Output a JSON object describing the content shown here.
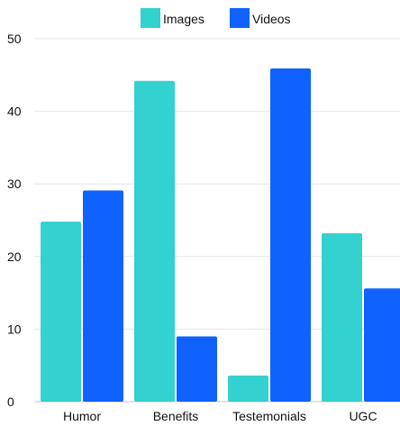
{
  "chart_data": {
    "type": "bar",
    "title": "",
    "xlabel": "",
    "ylabel": "",
    "categories": [
      "Humor",
      "Benefits",
      "Testemonials",
      "UGC"
    ],
    "series": [
      {
        "name": "Images",
        "values": [
          24.8,
          44.2,
          3.6,
          23.2
        ],
        "color": "#33D1CF"
      },
      {
        "name": "Videos",
        "values": [
          29.1,
          9.0,
          45.9,
          15.6
        ],
        "color": "#0F62FE"
      }
    ],
    "ylim": [
      0,
      50
    ],
    "yticks": [
      0,
      10,
      20,
      30,
      40,
      50
    ],
    "grid": true,
    "legend_position": "top"
  }
}
